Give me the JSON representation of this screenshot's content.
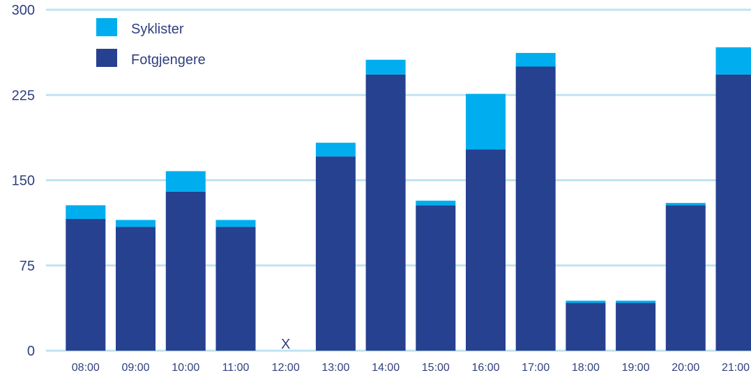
{
  "chart_data": {
    "type": "bar",
    "stacked": true,
    "categories": [
      "08:00",
      "09:00",
      "10:00",
      "11:00",
      "12:00",
      "13:00",
      "14:00",
      "15:00",
      "16:00",
      "17:00",
      "18:00",
      "19:00",
      "20:00",
      "21:00"
    ],
    "series": [
      {
        "name": "Fotgjengere",
        "color": "#26418f",
        "values": [
          116,
          109,
          140,
          109,
          0,
          171,
          243,
          128,
          177,
          250,
          42,
          42,
          128,
          243
        ]
      },
      {
        "name": "Syklister",
        "color": "#00aeef",
        "values": [
          12,
          6,
          18,
          6,
          0,
          12,
          13,
          4,
          49,
          12,
          2,
          2,
          2,
          24
        ]
      }
    ],
    "ylim": [
      0,
      300
    ],
    "yticks": [
      "0",
      "75",
      "150",
      "225",
      "300"
    ],
    "grid": true,
    "legend_position": "top-left",
    "legend_order": [
      "Syklister",
      "Fotgjengere"
    ],
    "missing_marker": {
      "category": "12:00",
      "label": "X"
    },
    "title": "",
    "xlabel": "",
    "ylabel": ""
  },
  "colors": {
    "grid": "#bfe3f1",
    "axis_text": "#2f3f7f"
  }
}
